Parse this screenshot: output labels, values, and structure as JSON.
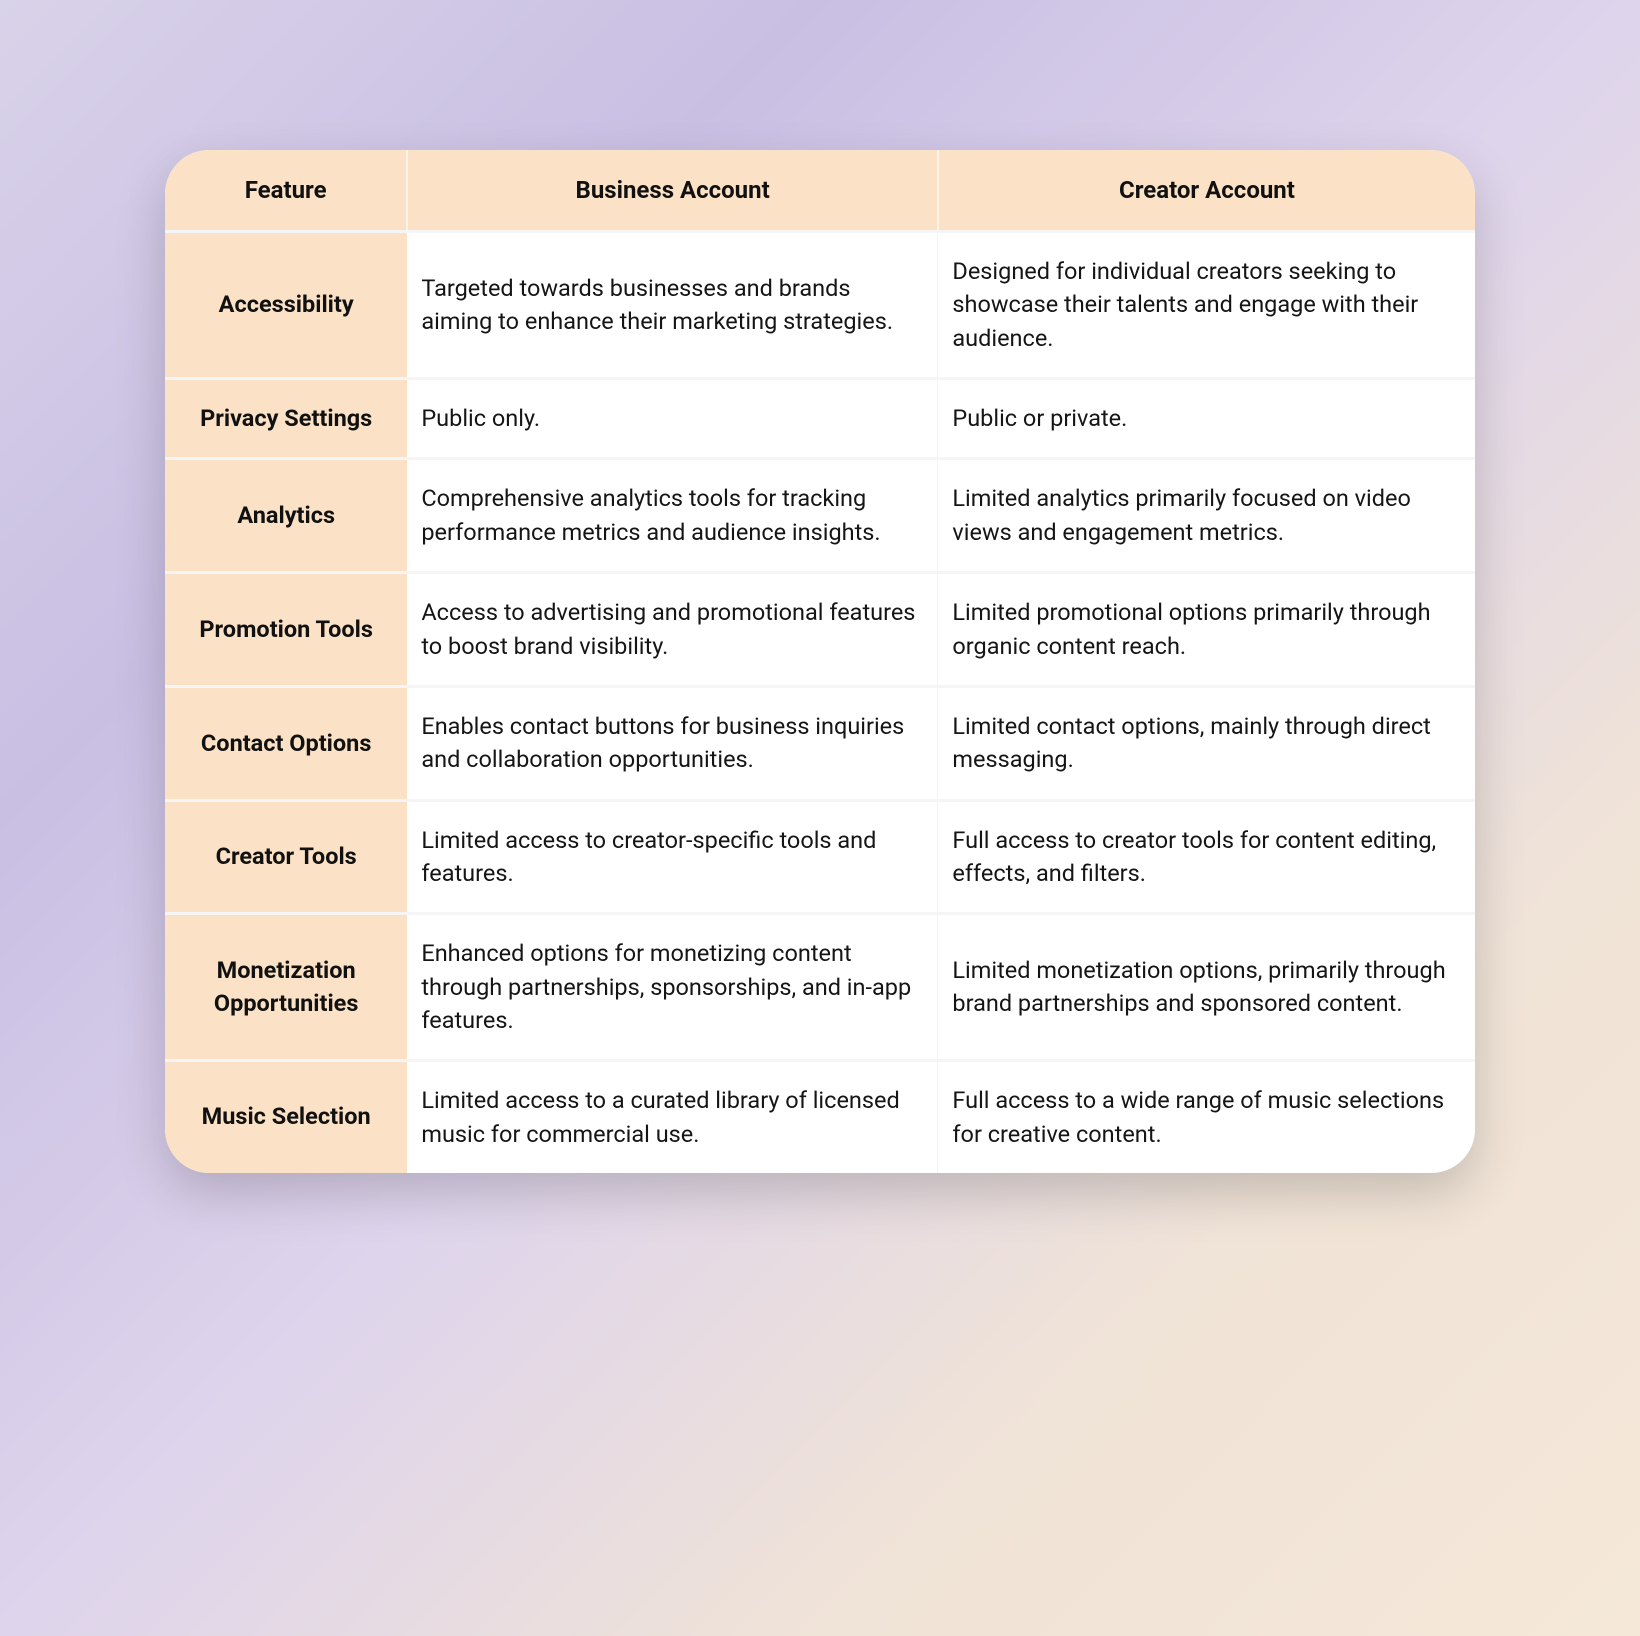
{
  "colors": {
    "header_bg": "#fbe2c7",
    "row_divider": "#f5f5f5",
    "card_bg": "#ffffff",
    "text": "#141414"
  },
  "table": {
    "columns": [
      "Feature",
      "Business Account",
      "Creator Account"
    ],
    "col_widths_pct": [
      18.5,
      40.5,
      41
    ],
    "header_fontsize_pt": 18,
    "body_fontsize_pt": 17.5,
    "rows": [
      {
        "feature": "Accessibility",
        "business": "Targeted towards businesses and brands aiming to enhance their marketing strategies.",
        "creator": "Designed for individual creators seeking to showcase their talents and engage with their audience."
      },
      {
        "feature": "Privacy Settings",
        "business": "Public only.",
        "creator": "Public or private."
      },
      {
        "feature": "Analytics",
        "business": "Comprehensive analytics tools for tracking performance metrics and audience insights.",
        "creator": "Limited analytics primarily focused on video views and engagement metrics."
      },
      {
        "feature": "Promotion Tools",
        "business": "Access to advertising and promotional features to boost brand visibility.",
        "creator": "Limited promotional options primarily through organic content reach."
      },
      {
        "feature": "Contact Options",
        "business": "Enables contact buttons for business inquiries and collaboration opportunities.",
        "creator": "Limited contact options, mainly through direct messaging."
      },
      {
        "feature": "Creator Tools",
        "business": "Limited access to creator-specific tools and features.",
        "creator": "Full access to creator tools for content editing, effects, and filters."
      },
      {
        "feature": "Monetization Opportunities",
        "business": "Enhanced options for monetizing content through partnerships, sponsorships, and in-app features.",
        "creator": "Limited monetization options, primarily through brand partnerships and sponsored content."
      },
      {
        "feature": "Music Selection",
        "business": "Limited access to a curated library of licensed music for commercial use.",
        "creator": "Full access to a wide range of music selections for creative content."
      }
    ]
  }
}
